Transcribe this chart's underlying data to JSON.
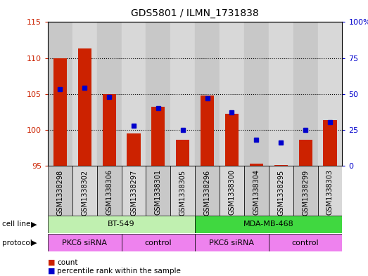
{
  "title": "GDS5801 / ILMN_1731838",
  "samples": [
    "GSM1338298",
    "GSM1338302",
    "GSM1338306",
    "GSM1338297",
    "GSM1338301",
    "GSM1338305",
    "GSM1338296",
    "GSM1338300",
    "GSM1338304",
    "GSM1338295",
    "GSM1338299",
    "GSM1338303"
  ],
  "red_values": [
    110.0,
    111.3,
    105.0,
    99.5,
    103.2,
    98.6,
    104.8,
    102.2,
    95.3,
    95.1,
    98.6,
    101.3
  ],
  "blue_values": [
    53,
    54,
    48,
    28,
    40,
    25,
    47,
    37,
    18,
    16,
    25,
    30
  ],
  "ylim_left": [
    95,
    115
  ],
  "ylim_right": [
    0,
    100
  ],
  "yticks_left": [
    95,
    100,
    105,
    110,
    115
  ],
  "yticks_right": [
    0,
    25,
    50,
    75,
    100
  ],
  "yticklabels_right": [
    "0",
    "25",
    "50",
    "75",
    "100%"
  ],
  "bar_color": "#cc2200",
  "dot_color": "#0000cc",
  "bar_width": 0.55,
  "baseline": 95,
  "left_tick_color": "#cc2200",
  "right_tick_color": "#0000cc",
  "bg_even": "#c8c8c8",
  "bg_odd": "#d8d8d8",
  "cell_line_row": [
    {
      "label": "BT-549",
      "start": 0,
      "end": 5,
      "color": "#c0f0b0"
    },
    {
      "label": "MDA-MB-468",
      "start": 6,
      "end": 11,
      "color": "#40d840"
    }
  ],
  "protocol_row": [
    {
      "label": "PKCδ siRNA",
      "start": 0,
      "end": 2,
      "color": "#ee82ee"
    },
    {
      "label": "control",
      "start": 3,
      "end": 5,
      "color": "#ee82ee"
    },
    {
      "label": "PKCδ siRNA",
      "start": 6,
      "end": 8,
      "color": "#ee82ee"
    },
    {
      "label": "control",
      "start": 9,
      "end": 11,
      "color": "#ee82ee"
    }
  ],
  "legend_items": [
    {
      "label": "count",
      "color": "#cc2200"
    },
    {
      "label": "percentile rank within the sample",
      "color": "#0000cc"
    }
  ]
}
